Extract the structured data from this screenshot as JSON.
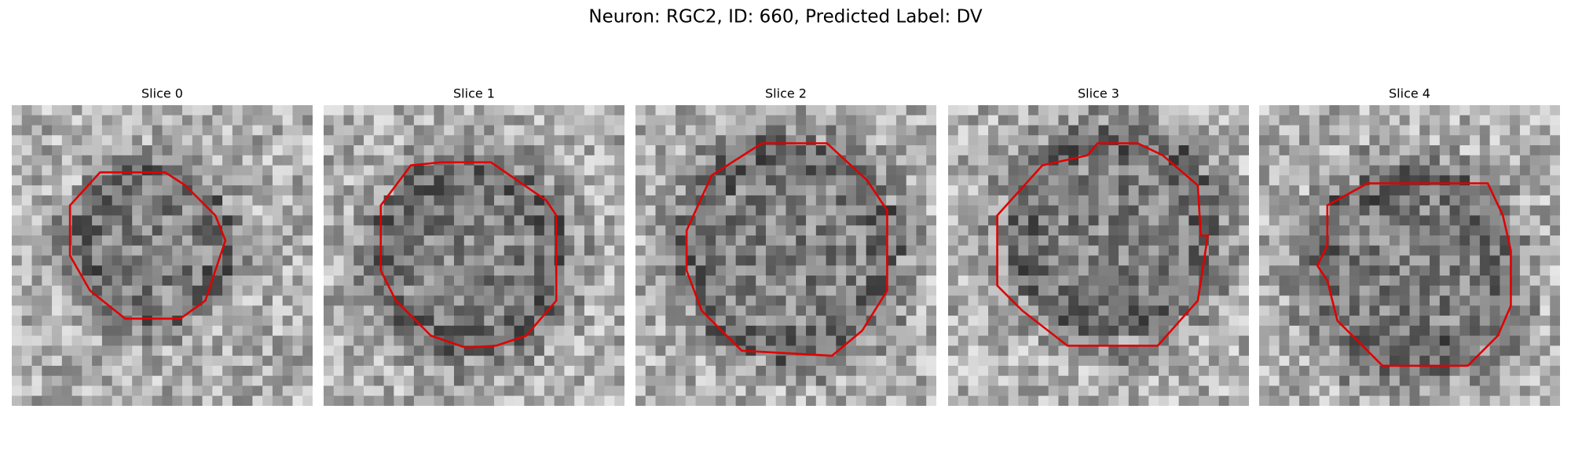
{
  "title": "Neuron: RGC2, ID: 660, Predicted Label: DV",
  "panels": [
    {
      "title": "Slice 0"
    },
    {
      "title": "Slice 1"
    },
    {
      "title": "Slice 2"
    },
    {
      "title": "Slice 3"
    },
    {
      "title": "Slice 4"
    }
  ]
}
